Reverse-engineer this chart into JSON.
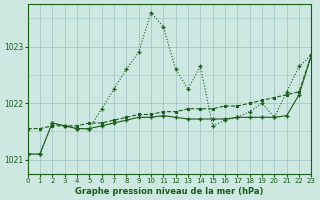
{
  "title": "Graphe pression niveau de la mer (hPa)",
  "background_color": "#cce8e0",
  "grid_color": "#aacccc",
  "line_color": "#1a5c1a",
  "x_labels": [
    "0",
    "1",
    "2",
    "3",
    "4",
    "5",
    "6",
    "7",
    "8",
    "9",
    "10",
    "11",
    "12",
    "13",
    "14",
    "15",
    "16",
    "17",
    "18",
    "19",
    "20",
    "21",
    "22",
    "23"
  ],
  "xlim": [
    0,
    23
  ],
  "ylim": [
    1020.75,
    1023.75
  ],
  "yticks": [
    1021,
    1022,
    1023
  ],
  "series_dotted": {
    "x": [
      0,
      1,
      2,
      3,
      4,
      5,
      6,
      7,
      8,
      9,
      10,
      11,
      12,
      13,
      14,
      15,
      16,
      17,
      18,
      19,
      20,
      21,
      22,
      23
    ],
    "y": [
      1021.1,
      1021.1,
      1021.65,
      1021.6,
      1021.55,
      1021.55,
      1021.9,
      1022.25,
      1022.6,
      1022.9,
      1023.6,
      1023.35,
      1022.6,
      1022.25,
      1022.65,
      1021.6,
      1021.7,
      1021.75,
      1021.85,
      1022.0,
      1021.75,
      1022.2,
      1022.65,
      1022.85
    ]
  },
  "series_dashed": {
    "x": [
      0,
      1,
      2,
      3,
      4,
      5,
      6,
      7,
      8,
      9,
      10,
      11,
      12,
      13,
      14,
      15,
      16,
      17,
      18,
      19,
      20,
      21,
      22,
      23
    ],
    "y": [
      1021.55,
      1021.55,
      1021.6,
      1021.6,
      1021.6,
      1021.65,
      1021.65,
      1021.7,
      1021.75,
      1021.8,
      1021.8,
      1021.85,
      1021.85,
      1021.9,
      1021.9,
      1021.9,
      1021.95,
      1021.95,
      1022.0,
      1022.05,
      1022.1,
      1022.15,
      1022.2,
      1022.85
    ]
  },
  "series_solid": {
    "x": [
      0,
      1,
      2,
      3,
      4,
      5,
      6,
      7,
      8,
      9,
      10,
      11,
      12,
      13,
      14,
      15,
      16,
      17,
      18,
      19,
      20,
      21,
      22,
      23
    ],
    "y": [
      1021.1,
      1021.1,
      1021.65,
      1021.6,
      1021.55,
      1021.55,
      1021.6,
      1021.65,
      1021.7,
      1021.75,
      1021.75,
      1021.78,
      1021.75,
      1021.72,
      1021.72,
      1021.72,
      1021.72,
      1021.75,
      1021.75,
      1021.75,
      1021.75,
      1021.78,
      1022.15,
      1022.85
    ]
  }
}
